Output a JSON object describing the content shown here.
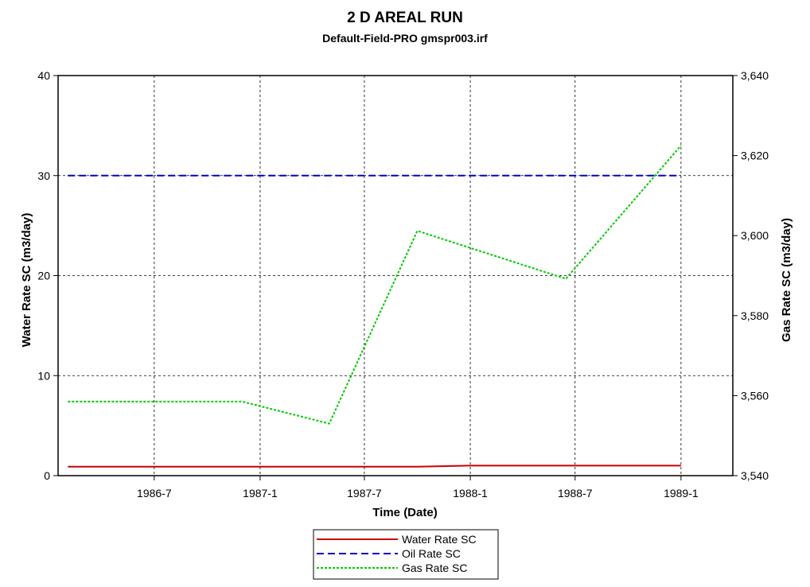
{
  "chart_data": {
    "type": "line",
    "title": "2 D AREAL RUN",
    "subtitle": "Default-Field-PRO gmspr003.irf",
    "xlabel": "Time (Date)",
    "ylabel": "Water Rate SC (m3/day)",
    "y2label": "Gas Rate SC (m3/day)",
    "x_ticks": [
      "1986-7",
      "1987-1",
      "1987-7",
      "1988-1",
      "1988-7",
      "1989-1"
    ],
    "x_range": [
      "1986-01-15",
      "1989-04-01"
    ],
    "ylim": [
      0,
      40
    ],
    "y_ticks": [
      "0",
      "10",
      "20",
      "30",
      "40"
    ],
    "y2lim": [
      3540,
      3640
    ],
    "y2_ticks": [
      "3,540",
      "3,560",
      "3,580",
      "3,600",
      "3,620",
      "3,640"
    ],
    "grid": true,
    "legend_position": "bottom",
    "series": [
      {
        "name": "Water Rate SC",
        "axis": "left",
        "color": "#cc0000",
        "style": "solid",
        "x": [
          "1986-02-01",
          "1987-10-01",
          "1988-01-01",
          "1989-01-01"
        ],
        "values": [
          0.9,
          0.9,
          1.0,
          1.0
        ]
      },
      {
        "name": "Oil Rate SC",
        "axis": "left",
        "color": "#0000cc",
        "style": "dashed",
        "x": [
          "1986-02-01",
          "1989-01-01"
        ],
        "values": [
          30,
          30
        ]
      },
      {
        "name": "Gas Rate SC",
        "axis": "right",
        "color": "#00cc00",
        "style": "dotted",
        "x": [
          "1986-02-01",
          "1986-12-01",
          "1987-05-01",
          "1987-10-01",
          "1988-06-15",
          "1989-01-01"
        ],
        "values": [
          3558.5,
          3558.5,
          3553,
          3601.2,
          3589.2,
          3622.5
        ]
      }
    ]
  }
}
